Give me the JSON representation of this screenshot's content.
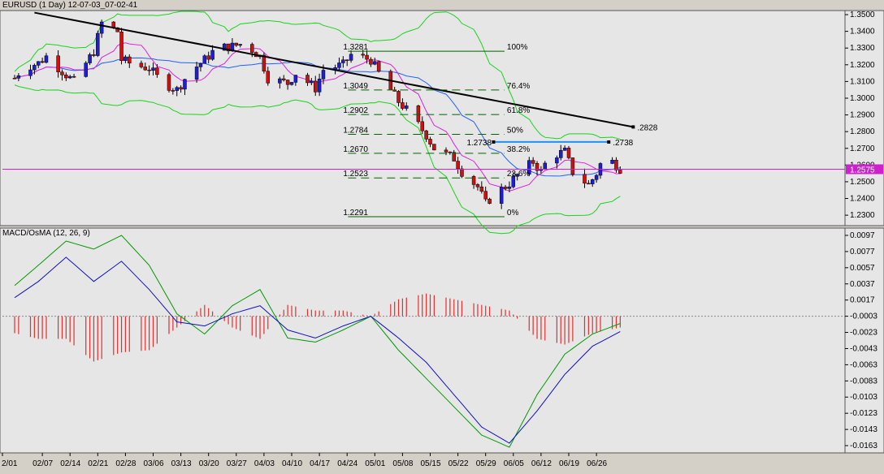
{
  "window": {
    "title": "EURUSD (1 Day)  12-07-03_07-02-41"
  },
  "colors": {
    "background": "#e6e6e6",
    "frame": "#d4d0c8",
    "bull": "#1f1fd0",
    "bear": "#d01010",
    "bb": "#19d419",
    "ma_fast": "#e020e0",
    "ma_slow": "#2060ff",
    "trendline": "#000000",
    "hline": "#cc22cc",
    "resistance": "#1e90ff",
    "fib": "#006400",
    "macd_hist": "#e03030",
    "macd_line": "#1010c0",
    "signal": "#009900"
  },
  "chart_data": [
    {
      "type": "candlestick",
      "title": "EURUSD (1 Day)  12-07-03_07-02-41",
      "x_tick_labels": [
        "2/01",
        "02/07",
        "02/14",
        "02/21",
        "02/28",
        "03/06",
        "03/13",
        "03/20",
        "03/27",
        "04/03",
        "04/10",
        "04/17",
        "04/24",
        "05/01",
        "05/08",
        "05/15",
        "05/22",
        "05/29",
        "06/05",
        "06/12",
        "06/19",
        "06/26"
      ],
      "y_tick_labels": [
        "1.3500",
        "1.3400",
        "1.3300",
        "1.3200",
        "1.3100",
        "1.3000",
        "1.2900",
        "1.2800",
        "1.2700",
        "1.2600",
        "1.2500",
        "1.2400",
        "1.2300"
      ],
      "ylim": [
        1.2286,
        1.3505
      ],
      "current_price_label": "1.2575",
      "current_price": 1.2575,
      "trendline": {
        "start_date": "2/06",
        "start_price": 1.3512,
        "end_date": "07/03",
        "end_price": 1.2828,
        "label": ".2828"
      },
      "resistance": {
        "start_date": "06/01",
        "end_date": "06/26",
        "price": 1.2738,
        "left_label": "1.2738",
        "right_label": ".2738"
      },
      "fibonacci": {
        "start_date": "04/24",
        "end_date": "06/05",
        "levels": [
          {
            "pct": "100%",
            "price": 1.3281,
            "price_label": "1.3281"
          },
          {
            "pct": "76.4%",
            "price": 1.3049,
            "price_label": "1.3049"
          },
          {
            "pct": "61.8%",
            "price": 1.2902,
            "price_label": "1.2902"
          },
          {
            "pct": "50%",
            "price": 1.2784,
            "price_label": "1.2784"
          },
          {
            "pct": "38.2%",
            "price": 1.267,
            "price_label": "1.2670"
          },
          {
            "pct": "23.6%",
            "price": 1.2523,
            "price_label": "1.2523"
          },
          {
            "pct": "0%",
            "price": 1.2291,
            "price_label": "1.2291"
          }
        ]
      },
      "close_path": [
        [
          "2/01",
          1.312
        ],
        [
          "02/03",
          1.318
        ],
        [
          "02/07",
          1.321
        ],
        [
          "02/09",
          1.325
        ],
        [
          "02/14",
          1.314
        ],
        [
          "02/16",
          1.31
        ],
        [
          "02/21",
          1.328
        ],
        [
          "02/23",
          1.345
        ],
        [
          "02/27",
          1.34
        ],
        [
          "02/28",
          1.323
        ],
        [
          "03/02",
          1.32
        ],
        [
          "03/06",
          1.318
        ],
        [
          "03/09",
          1.31
        ],
        [
          "03/13",
          1.305
        ],
        [
          "03/16",
          1.315
        ],
        [
          "03/20",
          1.323
        ],
        [
          "03/23",
          1.33
        ],
        [
          "03/27",
          1.331
        ],
        [
          "03/30",
          1.333
        ],
        [
          "04/03",
          1.325
        ],
        [
          "04/05",
          1.312
        ],
        [
          "04/10",
          1.309
        ],
        [
          "04/12",
          1.315
        ],
        [
          "04/17",
          1.306
        ],
        [
          "04/19",
          1.317
        ],
        [
          "04/24",
          1.32
        ],
        [
          "04/26",
          1.326
        ],
        [
          "05/01",
          1.323
        ],
        [
          "05/03",
          1.315
        ],
        [
          "05/08",
          1.298
        ],
        [
          "05/10",
          1.293
        ],
        [
          "05/15",
          1.278
        ],
        [
          "05/17",
          1.27
        ],
        [
          "05/22",
          1.264
        ],
        [
          "05/24",
          1.256
        ],
        [
          "05/28",
          1.247
        ],
        [
          "05/30",
          1.237
        ],
        [
          "06/01",
          1.242
        ],
        [
          "06/05",
          1.249
        ],
        [
          "06/07",
          1.254
        ],
        [
          "06/11",
          1.262
        ],
        [
          "06/13",
          1.256
        ],
        [
          "06/15",
          1.265
        ],
        [
          "06/19",
          1.268
        ],
        [
          "06/21",
          1.256
        ],
        [
          "06/25",
          1.248
        ],
        [
          "06/27",
          1.255
        ],
        [
          "06/29",
          1.266
        ],
        [
          "07/03",
          1.258
        ]
      ]
    },
    {
      "type": "line",
      "title": "MACD/OsMA (12, 26, 9)",
      "y_tick_labels": [
        "0.0097",
        "0.0077",
        "0.0057",
        "0.0037",
        "0.0017",
        "-0.0003",
        "-0.0023",
        "-0.0043",
        "-0.0063",
        "-0.0083",
        "-0.0103",
        "-0.0123",
        "-0.0143",
        "-0.0163"
      ],
      "ylim": [
        -0.0168,
        0.0102
      ],
      "macd": [
        [
          "2/01",
          0.002
        ],
        [
          "02/07",
          0.004
        ],
        [
          "02/14",
          0.007
        ],
        [
          "02/21",
          0.004
        ],
        [
          "02/28",
          0.0065
        ],
        [
          "03/06",
          0.003
        ],
        [
          "03/13",
          -0.001
        ],
        [
          "03/20",
          -0.0015
        ],
        [
          "03/27",
          0.0
        ],
        [
          "04/03",
          0.001
        ],
        [
          "04/10",
          -0.002
        ],
        [
          "04/17",
          -0.003
        ],
        [
          "04/24",
          -0.0015
        ],
        [
          "05/01",
          -0.0003
        ],
        [
          "05/08",
          -0.003
        ],
        [
          "05/15",
          -0.006
        ],
        [
          "05/22",
          -0.01
        ],
        [
          "05/29",
          -0.014
        ],
        [
          "06/05",
          -0.016
        ],
        [
          "06/12",
          -0.012
        ],
        [
          "06/19",
          -0.0075
        ],
        [
          "06/26",
          -0.004
        ],
        [
          "07/03",
          -0.0022
        ]
      ],
      "signal": [
        [
          "2/01",
          0.0035
        ],
        [
          "02/07",
          0.006
        ],
        [
          "02/14",
          0.009
        ],
        [
          "02/21",
          0.008
        ],
        [
          "02/28",
          0.0097
        ],
        [
          "03/06",
          0.006
        ],
        [
          "03/13",
          0.0
        ],
        [
          "03/20",
          -0.0025
        ],
        [
          "03/27",
          0.001
        ],
        [
          "04/03",
          0.003
        ],
        [
          "04/10",
          -0.003
        ],
        [
          "04/17",
          -0.0035
        ],
        [
          "04/24",
          -0.002
        ],
        [
          "05/01",
          -0.0003
        ],
        [
          "05/08",
          -0.0045
        ],
        [
          "05/15",
          -0.008
        ],
        [
          "05/22",
          -0.0115
        ],
        [
          "05/29",
          -0.015
        ],
        [
          "06/05",
          -0.0165
        ],
        [
          "06/12",
          -0.01
        ],
        [
          "06/19",
          -0.005
        ],
        [
          "06/26",
          -0.0025
        ],
        [
          "07/03",
          -0.0012
        ]
      ]
    }
  ]
}
